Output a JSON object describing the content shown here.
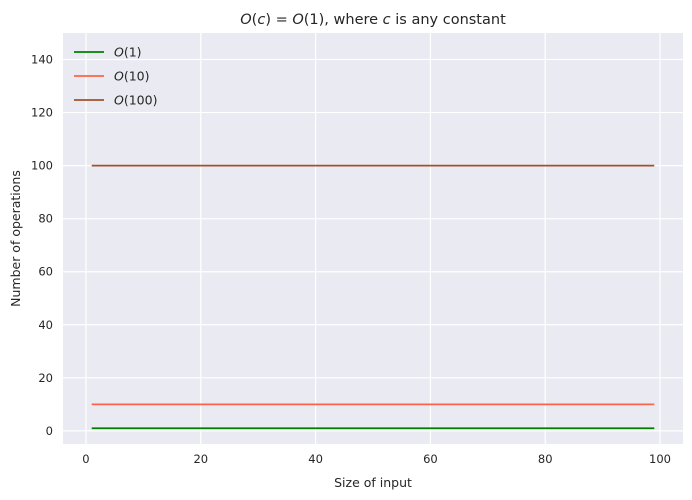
{
  "chart_data": {
    "type": "line",
    "title": {
      "parts": [
        {
          "text": "O",
          "italic": true
        },
        {
          "text": "(",
          "italic": false
        },
        {
          "text": "c",
          "italic": true
        },
        {
          "text": ") = ",
          "italic": false
        },
        {
          "text": "O",
          "italic": true
        },
        {
          "text": "(1), where ",
          "italic": false
        },
        {
          "text": "c",
          "italic": true
        },
        {
          "text": " is any constant",
          "italic": false
        }
      ]
    },
    "xlabel": "Size of input",
    "ylabel": "Number of operations",
    "xlim": [
      -4,
      104
    ],
    "ylim": [
      -4.95,
      150
    ],
    "xticks": [
      0,
      20,
      40,
      60,
      80,
      100
    ],
    "yticks": [
      0,
      20,
      40,
      60,
      80,
      100,
      120,
      140
    ],
    "grid": true,
    "legend_position": "top-left",
    "background_color": "#eaeaf2",
    "grid_color": "#ffffff",
    "series": [
      {
        "name": "O(1)",
        "name_italic": "O",
        "name_rest": "(1)",
        "color": "#008000",
        "x": [
          1,
          99
        ],
        "y": [
          1,
          1
        ]
      },
      {
        "name": "O(10)",
        "name_italic": "O",
        "name_rest": "(10)",
        "color": "#ff6347",
        "x": [
          1,
          99
        ],
        "y": [
          10,
          10
        ]
      },
      {
        "name": "O(100)",
        "name_italic": "O",
        "name_rest": "(100)",
        "color": "#a0522d",
        "x": [
          1,
          99
        ],
        "y": [
          100,
          100
        ]
      }
    ]
  }
}
